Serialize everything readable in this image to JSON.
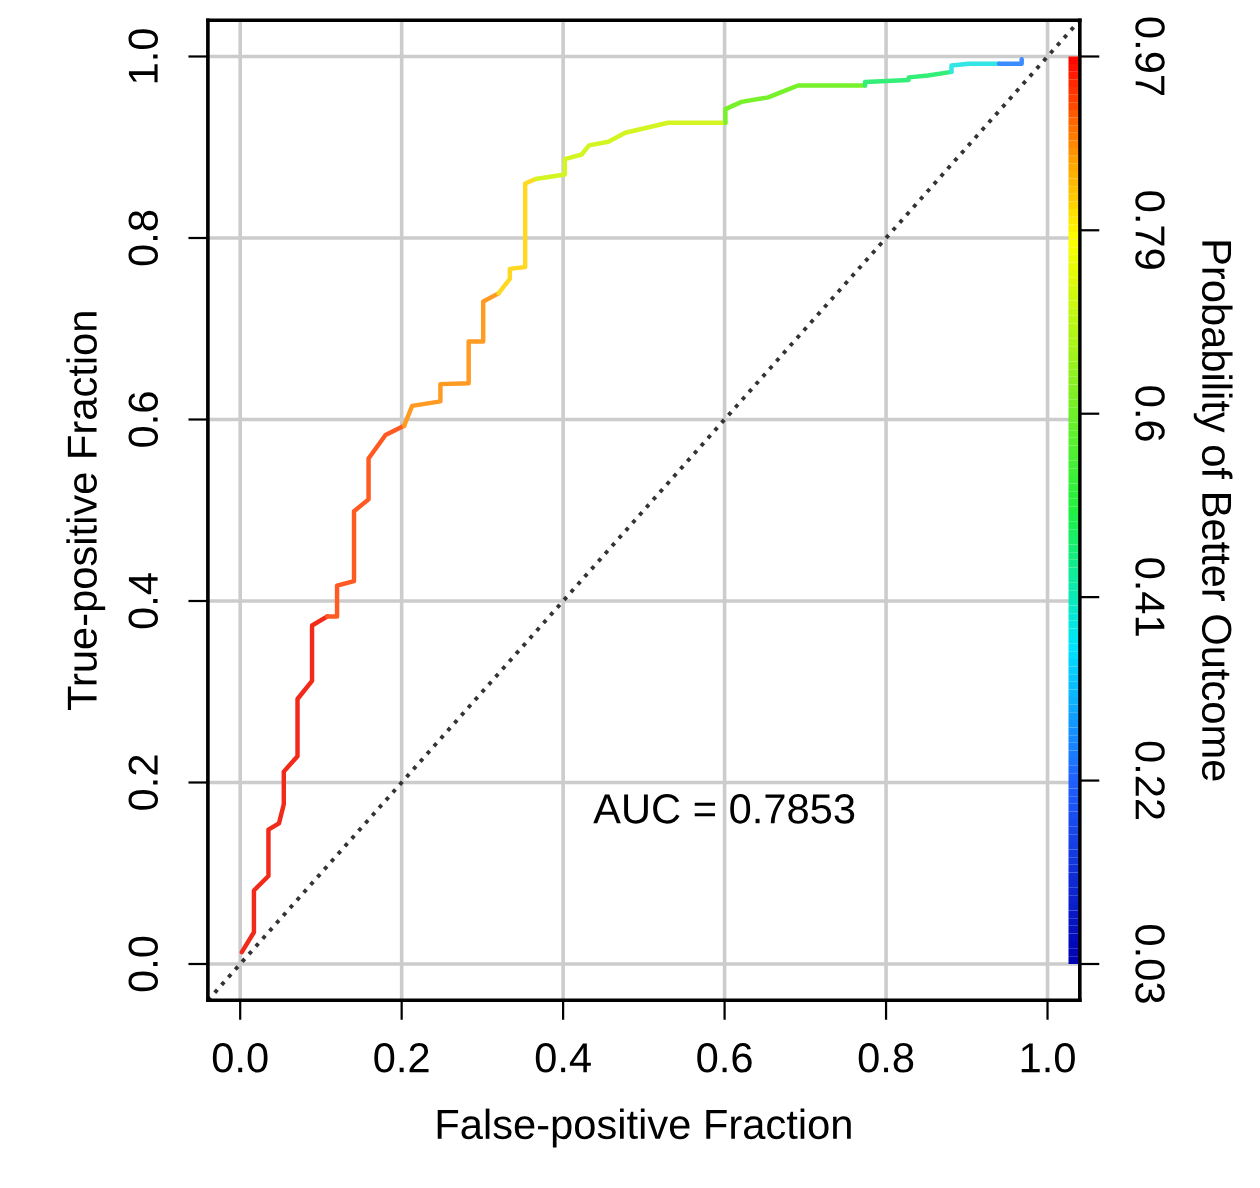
{
  "chart_data": {
    "type": "line",
    "xlabel": "False-positive Fraction",
    "ylabel": "True-positive Fraction",
    "y2label": "Probability of Better Outcome",
    "xlim": [
      -0.04,
      1.04
    ],
    "ylim": [
      -0.04,
      1.04
    ],
    "xticks": [
      {
        "value": 0,
        "label": "0.0"
      },
      0.2,
      0.4,
      0.6,
      0.8,
      {
        "value": 1,
        "label": "1.0"
      }
    ],
    "yticks": [
      {
        "value": 0,
        "label": "0.0"
      },
      0.2,
      0.4,
      0.6,
      0.8,
      {
        "value": 1,
        "label": "1.0"
      }
    ],
    "y2lim": [
      -0.0076,
      1.0076
    ],
    "y2ticks": [
      0.03,
      0.22,
      0.41,
      0.6,
      0.79,
      0.97
    ],
    "grid": true,
    "legend": false,
    "annotations": [
      "AUC = 0.7853"
    ],
    "series": [
      {
        "color": "#f22a1a",
        "x": [
          0.002,
          0.017,
          0.017,
          0.035,
          0.035,
          0.048,
          0.054,
          0.054,
          0.071,
          0.071,
          0.089,
          0.089,
          0.108
        ],
        "values": [
          0.013,
          0.035,
          0.081,
          0.097,
          0.148,
          0.155,
          0.176,
          0.212,
          0.229,
          0.292,
          0.312,
          0.373,
          0.383
        ]
      },
      {
        "color": "#ff5a22",
        "x": [
          0.108,
          0.12,
          0.12,
          0.141,
          0.141,
          0.159,
          0.159,
          0.18,
          0.203
        ],
        "values": [
          0.383,
          0.383,
          0.417,
          0.422,
          0.499,
          0.512,
          0.557,
          0.583,
          0.593
        ]
      },
      {
        "color": "#ff9a22",
        "x": [
          0.203,
          0.213,
          0.248,
          0.248,
          0.283,
          0.283,
          0.301,
          0.301,
          0.32
        ],
        "values": [
          0.593,
          0.615,
          0.62,
          0.639,
          0.64,
          0.686,
          0.686,
          0.73,
          0.739
        ]
      },
      {
        "color": "#ffd822",
        "x": [
          0.32,
          0.334,
          0.334,
          0.353,
          0.353,
          0.366
        ],
        "values": [
          0.739,
          0.755,
          0.766,
          0.768,
          0.86,
          0.865
        ]
      },
      {
        "color": "#d4f522",
        "x": [
          0.366,
          0.402,
          0.402,
          0.423,
          0.432,
          0.456,
          0.477,
          0.53,
          0.601
        ],
        "values": [
          0.865,
          0.87,
          0.887,
          0.892,
          0.902,
          0.906,
          0.916,
          0.927,
          0.927
        ]
      },
      {
        "color": "#77f22a",
        "x": [
          0.601,
          0.601,
          0.621,
          0.654,
          0.671,
          0.691,
          0.774
        ],
        "values": [
          0.927,
          0.942,
          0.95,
          0.955,
          0.961,
          0.968,
          0.968
        ]
      },
      {
        "color": "#33ee77",
        "x": [
          0.774,
          0.774,
          0.828,
          0.828,
          0.852,
          0.881
        ],
        "values": [
          0.968,
          0.972,
          0.974,
          0.977,
          0.979,
          0.983
        ]
      },
      {
        "color": "#33e5e5",
        "x": [
          0.881,
          0.881,
          0.902,
          0.94
        ],
        "values": [
          0.983,
          0.99,
          0.992,
          0.992
        ]
      },
      {
        "color": "#3a8cff",
        "x": [
          0.94,
          0.968,
          0.968
        ],
        "values": [
          0.992,
          0.992,
          0.997
        ]
      },
      {
        "color": "#333333",
        "line_style": "dotted",
        "x": [
          -0.04,
          1.04
        ],
        "values": [
          -0.04,
          1.04
        ]
      }
    ]
  }
}
